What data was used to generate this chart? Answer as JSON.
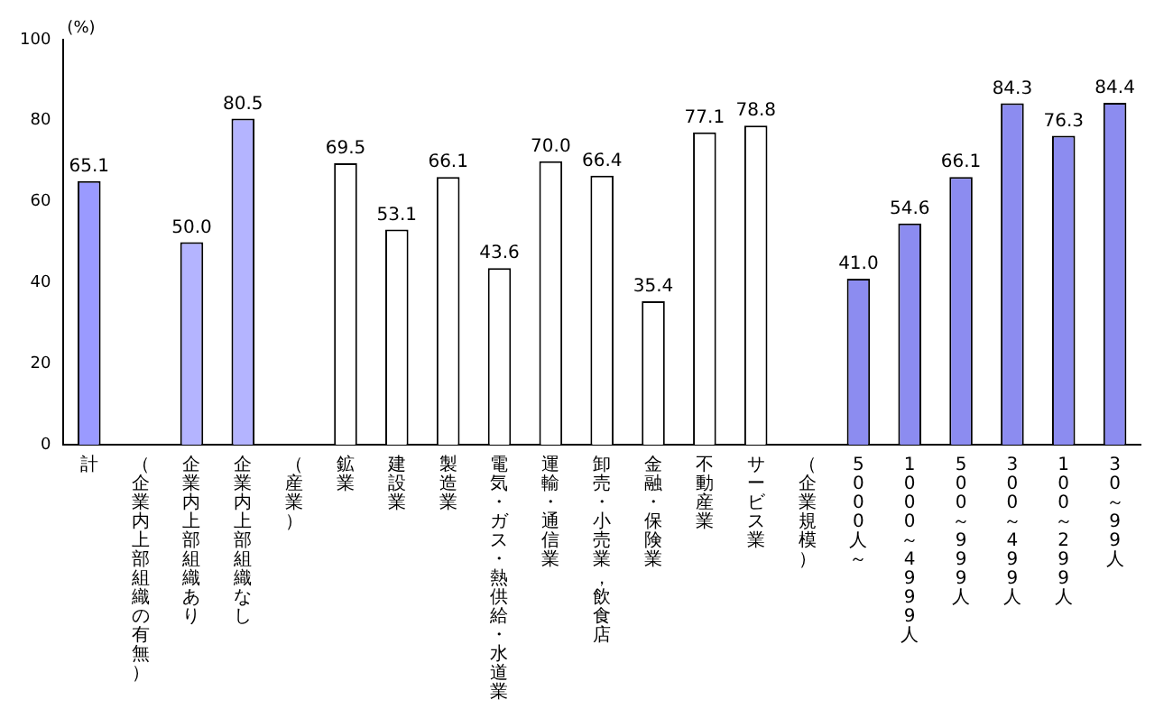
{
  "chart_data": {
    "type": "bar",
    "ylabel": "(%)",
    "categories": [
      "計",
      "（企業内上部組織の有無）",
      "企業内上部組織あり",
      "企業内上部組織なし",
      "（産業）",
      "鉱業",
      "建設業",
      "製造業",
      "電気・ガス・熱供給・水道業",
      "運輸・通信業",
      "卸売・小売業，飲食店",
      "金融・保険業",
      "不動産業",
      "サービス業",
      "（企業規模）",
      "5000人～",
      "1000～4999人",
      "500～999人",
      "300～499人",
      "100～299人",
      "30～99人"
    ],
    "values": [
      65.1,
      null,
      50.0,
      80.5,
      null,
      69.5,
      53.1,
      66.1,
      43.6,
      70.0,
      66.4,
      35.4,
      77.1,
      78.8,
      null,
      41.0,
      54.6,
      66.1,
      84.3,
      76.3,
      84.4
    ],
    "colors": [
      "#9a9aff",
      "#ffffff",
      "#b4b4ff",
      "#b4b4ff",
      "#ffffff",
      "#ffffff",
      "#ffffff",
      "#ffffff",
      "#ffffff",
      "#ffffff",
      "#ffffff",
      "#ffffff",
      "#ffffff",
      "#ffffff",
      "#ffffff",
      "#8c8cf0",
      "#8c8cf0",
      "#8c8cf0",
      "#8c8cf0",
      "#8c8cf0",
      "#8c8cf0"
    ],
    "ylim": [
      0,
      100
    ],
    "yticks": [
      0,
      20,
      40,
      60,
      80,
      100
    ],
    "value_labels": [
      "65.1",
      null,
      "50.0",
      "80.5",
      null,
      "69.5",
      "53.1",
      "66.1",
      "43.6",
      "70.0",
      "66.4",
      "35.4",
      "77.1",
      "78.8",
      null,
      "41.0",
      "54.6",
      "66.1",
      "84.3",
      "76.3",
      "84.4"
    ],
    "grid": false,
    "legend": false
  }
}
